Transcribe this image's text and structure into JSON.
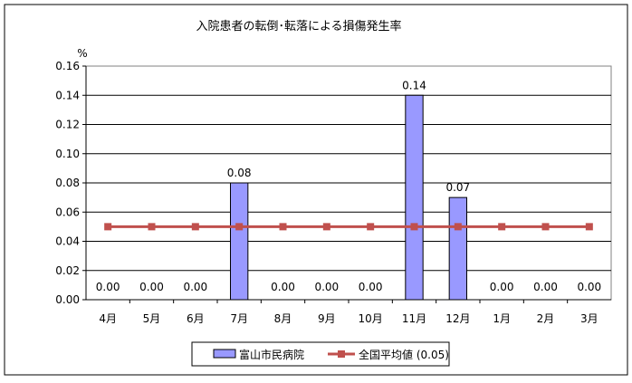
{
  "chart_data": {
    "type": "bar",
    "title": "入院患者の転倒･転落による損傷発生率",
    "ylabel": "%",
    "xlabel": "",
    "ylim": [
      0,
      0.16
    ],
    "y_ticks": [
      "0.00",
      "0.02",
      "0.04",
      "0.06",
      "0.08",
      "0.10",
      "0.12",
      "0.14",
      "0.16"
    ],
    "categories": [
      "4月",
      "5月",
      "6月",
      "7月",
      "8月",
      "9月",
      "10月",
      "11月",
      "12月",
      "1月",
      "2月",
      "3月"
    ],
    "grid": true,
    "legend_position": "bottom",
    "series": [
      {
        "name": "富山市民病院",
        "kind": "bar",
        "color": "#9999FF",
        "values": [
          0.0,
          0.0,
          0.0,
          0.08,
          0.0,
          0.0,
          0.0,
          0.14,
          0.07,
          0.0,
          0.0,
          0.0
        ],
        "labels": [
          "0.00",
          "0.00",
          "0.00",
          "0.08",
          "0.00",
          "0.00",
          "0.00",
          "0.14",
          "0.07",
          "0.00",
          "0.00",
          "0.00"
        ]
      },
      {
        "name": "全国平均値 (0.05)",
        "kind": "line",
        "color": "#C0504D",
        "marker": "square",
        "values": [
          0.05,
          0.05,
          0.05,
          0.05,
          0.05,
          0.05,
          0.05,
          0.05,
          0.05,
          0.05,
          0.05,
          0.05
        ]
      }
    ]
  }
}
